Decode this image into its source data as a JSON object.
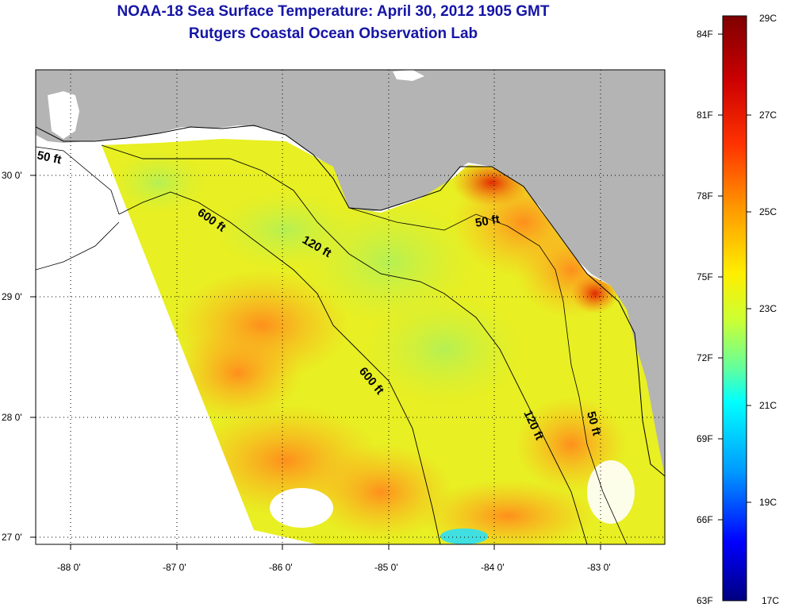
{
  "title": "NOAA-18 Sea Surface Temperature:  April 30, 2012 1905 GMT",
  "subtitle": "Rutgers Coastal Ocean Observation Lab",
  "map": {
    "lon_ticks": [
      "-88 0'",
      "-87 0'",
      "-86 0'",
      "-85 0'",
      "-84 0'",
      "-83 0'"
    ],
    "lat_ticks": [
      "30 0'",
      "29 0'",
      "28 0'",
      "27 0'"
    ],
    "contours": [
      "50 ft",
      "600 ft",
      "120 ft",
      "50 ft",
      "600 ft",
      "120 ft",
      "50 ft"
    ],
    "colors": {
      "land": "#b4b4b4",
      "contour": "#000000",
      "grid": "#000000"
    }
  },
  "colorbar": {
    "f_labels": [
      "84F",
      "81F",
      "78F",
      "75F",
      "72F",
      "69F",
      "66F",
      "63F"
    ],
    "c_labels": [
      "29C",
      "27C",
      "25C",
      "23C",
      "21C",
      "19C",
      "17C"
    ],
    "colormap": [
      "#7f0000",
      "#ff0000",
      "#ff8000",
      "#ffff00",
      "#80ff80",
      "#00ffff",
      "#0080ff",
      "#0000ff",
      "#00007f"
    ]
  }
}
